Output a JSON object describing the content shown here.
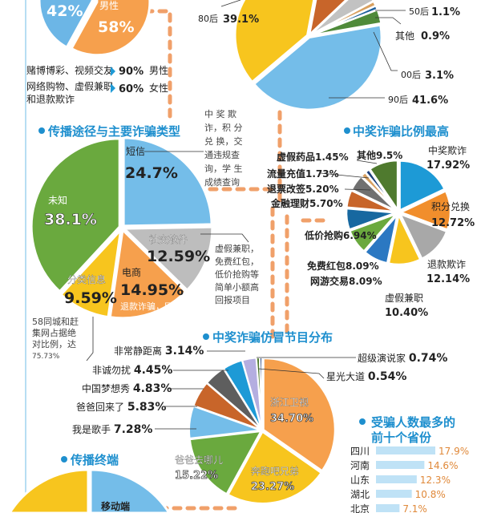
{
  "gender": {
    "slices": [
      {
        "label": "男性",
        "value": 58,
        "display": "58%",
        "color": "#f6a04d"
      },
      {
        "label": "",
        "value": 42,
        "display": "42%",
        "color": "#6cb6e6"
      }
    ],
    "notes": [
      {
        "text": "赌博博彩、视频交友",
        "pct": "90%",
        "who": "男性"
      },
      {
        "text1": "网络购物、虚假兼职",
        "text2": "和退款欺诈",
        "pct": "60%",
        "who": "女性"
      }
    ]
  },
  "chart_data": [
    {
      "type": "pie",
      "title": "",
      "slices": [
        {
          "label": "",
          "value": 10.0,
          "color": "#c8652a"
        },
        {
          "label": "",
          "value": 4.2,
          "color": "#c2c2c2"
        },
        {
          "label": "50后",
          "value": 1.1,
          "display": "1.1%",
          "color": "#d8a060"
        },
        {
          "label": "其他",
          "value": 0.9,
          "display": "0.9%",
          "color": "#1d5f9c"
        },
        {
          "label": "00后",
          "value": 3.1,
          "display": "3.1%",
          "color": "#4f8a3a"
        },
        {
          "label": "90后",
          "value": 41.6,
          "display": "41.6%",
          "color": "#74bde9"
        },
        {
          "label": "80后",
          "value": 39.1,
          "display": "39.1%",
          "color": "#f7c51e"
        }
      ]
    },
    {
      "type": "pie",
      "title": "传播途径与主要诈骗类型",
      "slices": [
        {
          "label": "短信",
          "value": 24.7,
          "display": "24.7%",
          "color": "#74bde9"
        },
        {
          "label": "社交软件",
          "value": 12.59,
          "display": "12.59%",
          "color": "#bdbdbd"
        },
        {
          "label": "电商",
          "value": 14.95,
          "display": "14.95%",
          "color": "#f6a04d",
          "sub": "退款诈骗，网游交易"
        },
        {
          "label": "分类信息",
          "value": 9.59,
          "display": "9.59%",
          "color": "#f7c51e"
        },
        {
          "label": "未知",
          "value": 38.1,
          "display": "38.1%",
          "color": "#6aa93e"
        }
      ]
    },
    {
      "type": "pie",
      "title": "中奖诈骗比例最高",
      "slices": [
        {
          "label": "中奖欺诈",
          "value": 17.92,
          "display": "17.92%",
          "color": "#1d9ad6"
        },
        {
          "label": "积分兑换",
          "value": 12.72,
          "display": "12.72%",
          "color": "#f18e2c"
        },
        {
          "label": "退款欺诈",
          "value": 12.14,
          "display": "12.14%",
          "color": "#a8a8a8"
        },
        {
          "label": "虚假兼职",
          "value": 10.4,
          "display": "10.40%",
          "color": "#f7c51e"
        },
        {
          "label": "网游交易",
          "value": 8.09,
          "display": "8.09%",
          "color": "#2b78c2"
        },
        {
          "label": "免费红包",
          "value": 8.09,
          "display": "8.09%",
          "color": "#6aa93e"
        },
        {
          "label": "低价抢购",
          "value": 6.94,
          "display": "6.94%",
          "color": "#1768a0"
        },
        {
          "label": "金融理财",
          "value": 5.7,
          "display": "5.70%",
          "color": "#c8652a"
        },
        {
          "label": "退票改签",
          "value": 5.2,
          "display": "5.20%",
          "color": "#707070"
        },
        {
          "label": "流量充值",
          "value": 1.73,
          "display": "1.73%",
          "color": "#d8a060"
        },
        {
          "label": "虚假药品",
          "value": 1.45,
          "display": "1.45%",
          "color": "#1d3f7c"
        },
        {
          "label": "其他",
          "value": 9.5,
          "display": "9.5%",
          "color": "#4f7a2e"
        }
      ]
    },
    {
      "type": "pie",
      "title": "中奖诈骗仿冒节目分布",
      "slices": [
        {
          "label": "浙江卫视",
          "value": 34.7,
          "display": "34.70%",
          "color": "#f6a04d"
        },
        {
          "label": "奔跑吧兄弟",
          "value": 23.27,
          "display": "23.27%",
          "color": "#f7c51e"
        },
        {
          "label": "爸爸去哪儿",
          "value": 15.22,
          "display": "15.22%",
          "color": "#6aa93e"
        },
        {
          "label": "我是歌手",
          "value": 7.28,
          "display": "7.28%",
          "color": "#74bde9"
        },
        {
          "label": "爸爸回来了",
          "value": 5.83,
          "display": "5.83%",
          "color": "#c8652a"
        },
        {
          "label": "中国梦想秀",
          "value": 4.83,
          "display": "4.83%",
          "color": "#5e5e5e"
        },
        {
          "label": "非诚勿扰",
          "value": 4.45,
          "display": "4.45%",
          "color": "#1d9ad6"
        },
        {
          "label": "非常静距离",
          "value": 3.14,
          "display": "3.14%",
          "color": "#b4aee0"
        },
        {
          "label": "超级演说家",
          "value": 0.74,
          "display": "0.74%",
          "color": "#4f7a2e"
        },
        {
          "label": "星光大道",
          "value": 0.54,
          "display": "0.54%",
          "color": "#1d3f7c"
        }
      ]
    },
    {
      "type": "bar",
      "title": "受骗人数最多的前十个省份",
      "title1": "受骗人数最多的",
      "title2": "前十个省份",
      "categories": [
        "四川",
        "河南",
        "山东",
        "湖北",
        "北京"
      ],
      "values": [
        17.9,
        14.6,
        12.3,
        10.8,
        7.1
      ],
      "labels": [
        "17.9%",
        "14.6%",
        "12.3%",
        "10.8%",
        "7.1%"
      ],
      "bar_color": "#bfe2f6",
      "label_color": "#e0893a"
    }
  ],
  "notes": {
    "prize_types": [
      "中 奖 欺",
      "诈，积 分",
      "兑 换，交",
      "通违规查",
      "询，学 生",
      "成绩查询"
    ],
    "social_types": [
      "虚假兼职，",
      "免费红包，",
      "低价抢购等",
      "简单小额高",
      "回报项目"
    ],
    "classified": [
      "58同城和赶",
      "集网占据绝",
      "对比例，达",
      "75.73%"
    ]
  },
  "terminal": {
    "title": "传播终端",
    "label": "移动端"
  },
  "colors": {
    "accent": "#1e8fce",
    "dash": "#f0a06a",
    "rule": "#9fd3ef"
  }
}
